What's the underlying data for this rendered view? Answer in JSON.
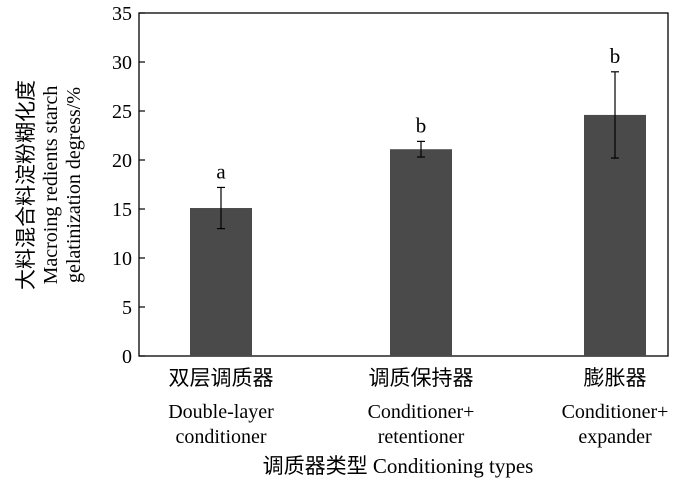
{
  "chart_data": {
    "type": "bar",
    "categories": [
      {
        "zh": "双层调质器",
        "en": [
          "Double-layer",
          "conditioner"
        ]
      },
      {
        "zh": "调质保持器",
        "en": [
          "Conditioner+",
          "retentioner"
        ]
      },
      {
        "zh": "膨胀器",
        "en": [
          "Conditioner+",
          "expander"
        ]
      }
    ],
    "values": [
      15.1,
      21.1,
      24.6
    ],
    "errors": [
      2.1,
      0.8,
      4.4
    ],
    "significance": [
      "a",
      "b",
      "b"
    ],
    "ylim": [
      0,
      35
    ],
    "yticks": [
      0,
      5,
      10,
      15,
      20,
      25,
      30,
      35
    ],
    "ylabel": {
      "zh": "大料混合料淀粉糊化度",
      "en": [
        "Macroing redients starch",
        "gelatinization degress/%"
      ]
    },
    "xlabel": "调质器类型  Conditioning types",
    "bar_color": "#4a4a4a",
    "grid": false,
    "legend": "none"
  }
}
